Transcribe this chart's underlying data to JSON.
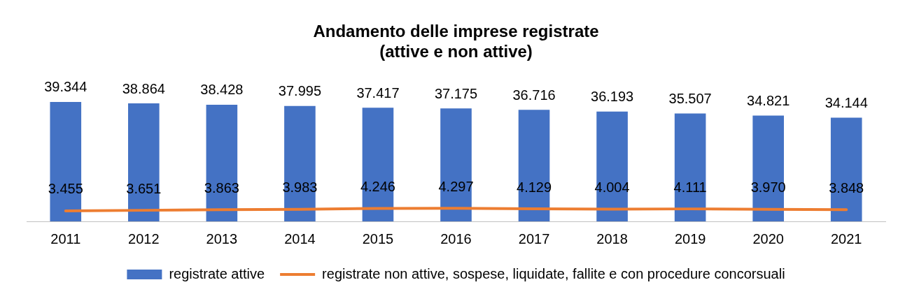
{
  "chart_data": {
    "type": "bar",
    "title": "Andamento delle imprese registrate\n(attive e non attive)",
    "categories": [
      "2011",
      "2012",
      "2013",
      "2014",
      "2015",
      "2016",
      "2017",
      "2018",
      "2019",
      "2020",
      "2021"
    ],
    "legend": "bottom",
    "grid": false,
    "series": [
      {
        "name": "registrate attive",
        "color": "#4472c4",
        "values": [
          39344,
          38864,
          38428,
          37995,
          37417,
          37175,
          36716,
          36193,
          35507,
          34821,
          34144
        ],
        "value_labels": [
          "39.344",
          "38.864",
          "38.428",
          "37.995",
          "37.417",
          "37.175",
          "36.716",
          "36.193",
          "35.507",
          "34.821",
          "34.144"
        ]
      },
      {
        "name": "registrate non attive, sospese, liquidate, fallite e con procedure concorsuali",
        "type": "line",
        "color": "#ed7d31",
        "marker": "none",
        "values": [
          3455,
          3651,
          3863,
          3983,
          4246,
          4297,
          4129,
          4004,
          4111,
          3970,
          3848
        ],
        "value_labels": [
          "3.455",
          "3.651",
          "3.863",
          "3.983",
          "4.246",
          "4.297",
          "4.129",
          "4.004",
          "4.111",
          "3.970",
          "3.848"
        ]
      }
    ]
  }
}
